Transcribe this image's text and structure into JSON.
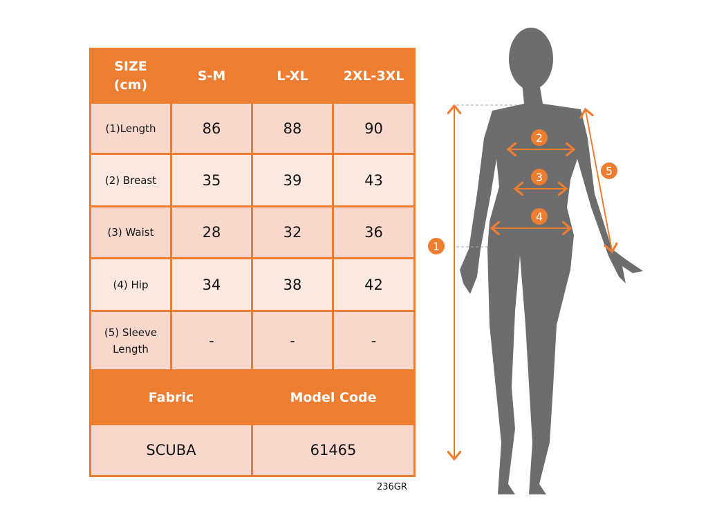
{
  "table": {
    "header": [
      "SIZE (cm)",
      "S-M",
      "L-XL",
      "2XL-3XL"
    ],
    "header_line1": "SIZE",
    "header_line2": "(cm)",
    "rows": [
      {
        "label": "(1)Length",
        "values": [
          "86",
          "88",
          "90"
        ]
      },
      {
        "label": "(2) Breast",
        "values": [
          "35",
          "39",
          "43"
        ]
      },
      {
        "label": "(3) Waist",
        "values": [
          "28",
          "32",
          "36"
        ]
      },
      {
        "label": "(4) Hip",
        "values": [
          "34",
          "38",
          "42"
        ]
      },
      {
        "label": "(5) Sleeve Length",
        "label_line1": "(5) Sleeve",
        "label_line2": "Length",
        "values": [
          "-",
          "-",
          "-"
        ]
      }
    ],
    "info_header": [
      "Fabric",
      "Model Code"
    ],
    "info_values": [
      "SCUBA",
      "61465"
    ]
  },
  "footer_code": "236GR",
  "figure": {
    "markers": [
      "1",
      "2",
      "3",
      "4",
      "5"
    ]
  },
  "colors": {
    "accent": "#ed7d31",
    "row_dark": "#f8d8cd",
    "row_light": "#fbe8e1",
    "silhouette": "#6d6d6d"
  }
}
